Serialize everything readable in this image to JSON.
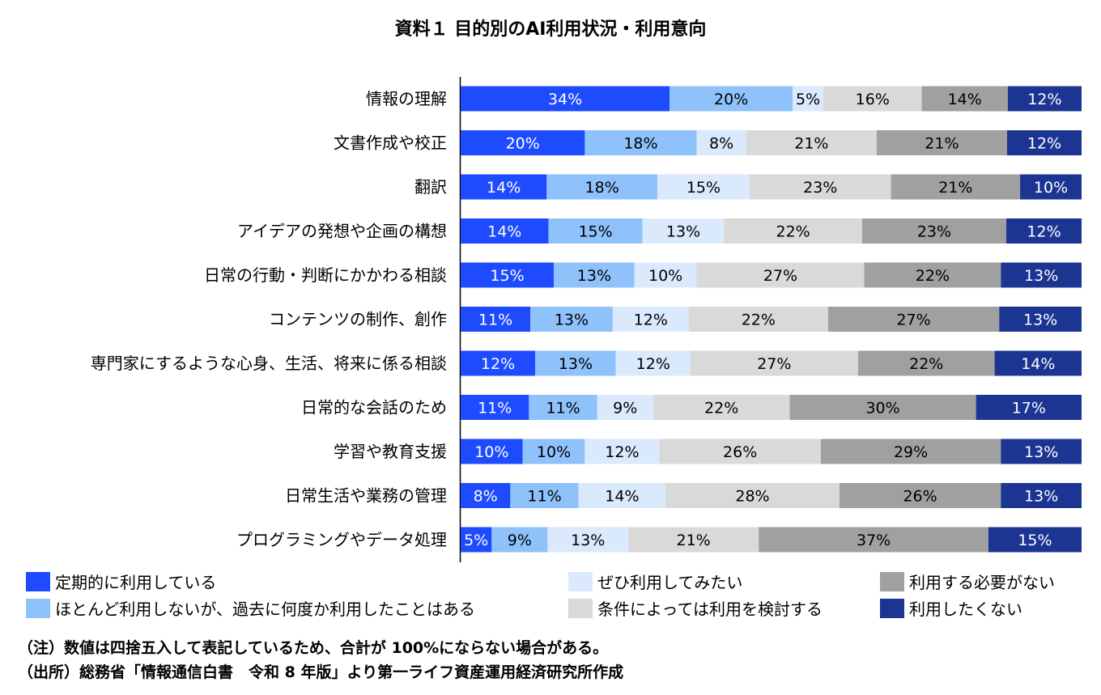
{
  "chart_data": {
    "type": "bar",
    "orientation": "horizontal-stacked-100",
    "title": "資料１ 目的別のAI利用状況・利用意向",
    "categories": [
      "情報の理解",
      "文書作成や校正",
      "翻訳",
      "アイデアの発想や企画の構想",
      "日常の行動・判断にかかわる相談",
      "コンテンツの制作、創作",
      "専門家にするような心身、生活、将来に係る相談",
      "日常的な会話のため",
      "学習や教育支援",
      "日常生活や業務の管理",
      "プログラミングやデータ処理"
    ],
    "series": [
      {
        "name": "定期的に利用している",
        "color": "#1f4bff",
        "label_color": "#ffffff",
        "values": [
          34,
          20,
          14,
          14,
          15,
          11,
          12,
          11,
          10,
          8,
          5
        ]
      },
      {
        "name": "ほとんど利用しないが、過去に何度か利用したことはある",
        "color": "#8fc1fb",
        "label_color": "#000000",
        "values": [
          20,
          18,
          18,
          15,
          13,
          13,
          13,
          11,
          10,
          11,
          9
        ]
      },
      {
        "name": "ぜひ利用してみたい",
        "color": "#dbe9fd",
        "label_color": "#000000",
        "values": [
          5,
          8,
          15,
          13,
          10,
          12,
          12,
          9,
          12,
          14,
          13
        ]
      },
      {
        "name": "条件によっては利用を検討する",
        "color": "#d9d9d9",
        "label_color": "#000000",
        "values": [
          16,
          21,
          23,
          22,
          27,
          22,
          27,
          22,
          26,
          28,
          21
        ]
      },
      {
        "name": "利用する必要がない",
        "color": "#a0a0a0",
        "label_color": "#000000",
        "values": [
          14,
          21,
          21,
          23,
          22,
          27,
          22,
          30,
          29,
          26,
          37
        ]
      },
      {
        "name": "利用したくない",
        "color": "#1c3592",
        "label_color": "#ffffff",
        "values": [
          12,
          12,
          10,
          12,
          13,
          13,
          14,
          17,
          13,
          13,
          15
        ]
      }
    ],
    "value_suffix": "%",
    "legend_position": "bottom",
    "grid": false
  },
  "notes": [
    "（注）数値は四捨五入して表記しているため、合計が 100%にならない場合がある。",
    "（出所）総務省「情報通信白書　令和 8 年版」より第一ライフ資産運用経済研究所作成"
  ]
}
